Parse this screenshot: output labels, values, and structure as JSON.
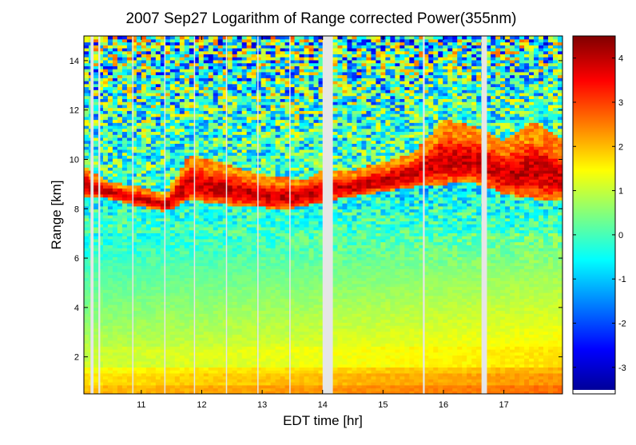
{
  "chart_data": {
    "type": "heatmap",
    "title": "2007 Sep27  Logarithm of Range corrected Power(355nm)",
    "xlabel": "EDT time [hr]",
    "ylabel": "Range [km]",
    "xlim": [
      10.05,
      17.97
    ],
    "ylim": [
      0.5,
      15.0
    ],
    "x_ticks": [
      "11",
      "12",
      "13",
      "14",
      "15",
      "16",
      "17"
    ],
    "y_ticks": [
      "2",
      "4",
      "6",
      "8",
      "10",
      "12",
      "14"
    ],
    "colorbar": {
      "clim": [
        -3.6,
        4.5
      ],
      "ticks": [
        "4",
        "3",
        "2",
        "1",
        "0",
        "-1",
        "-2",
        "-3"
      ],
      "colormap": "jet"
    },
    "data_gaps_hr": [
      [
        10.16,
        10.21
      ],
      [
        10.29,
        10.32
      ],
      [
        10.85,
        10.87
      ],
      [
        11.38,
        11.4
      ],
      [
        11.87,
        11.89
      ],
      [
        12.4,
        12.42
      ],
      [
        12.92,
        12.94
      ],
      [
        13.45,
        13.47
      ],
      [
        14.0,
        14.17
      ],
      [
        15.66,
        15.69
      ],
      [
        16.63,
        16.72
      ]
    ],
    "cloud_layer_km": [
      {
        "x": 10.05,
        "base": 8.5,
        "top": 9.8
      },
      {
        "x": 10.5,
        "base": 8.4,
        "top": 9.1
      },
      {
        "x": 11.0,
        "base": 8.1,
        "top": 8.9
      },
      {
        "x": 11.4,
        "base": 7.9,
        "top": 8.6
      },
      {
        "x": 11.8,
        "base": 8.4,
        "top": 10.2
      },
      {
        "x": 12.3,
        "base": 8.2,
        "top": 9.9
      },
      {
        "x": 12.8,
        "base": 8.1,
        "top": 9.5
      },
      {
        "x": 13.3,
        "base": 8.0,
        "top": 9.3
      },
      {
        "x": 13.7,
        "base": 8.1,
        "top": 9.2
      },
      {
        "x": 14.0,
        "base": 8.3,
        "top": 9.6
      },
      {
        "x": 14.5,
        "base": 8.5,
        "top": 9.6
      },
      {
        "x": 15.0,
        "base": 8.7,
        "top": 9.9
      },
      {
        "x": 15.5,
        "base": 8.9,
        "top": 10.3
      },
      {
        "x": 16.0,
        "base": 9.0,
        "top": 11.6
      },
      {
        "x": 16.5,
        "base": 9.1,
        "top": 11.4
      },
      {
        "x": 17.0,
        "base": 8.6,
        "top": 10.8
      },
      {
        "x": 17.5,
        "base": 8.4,
        "top": 11.6
      },
      {
        "x": 17.97,
        "base": 8.4,
        "top": 10.8
      }
    ],
    "boundary_layer_top_km": 1.6,
    "grid": false
  }
}
